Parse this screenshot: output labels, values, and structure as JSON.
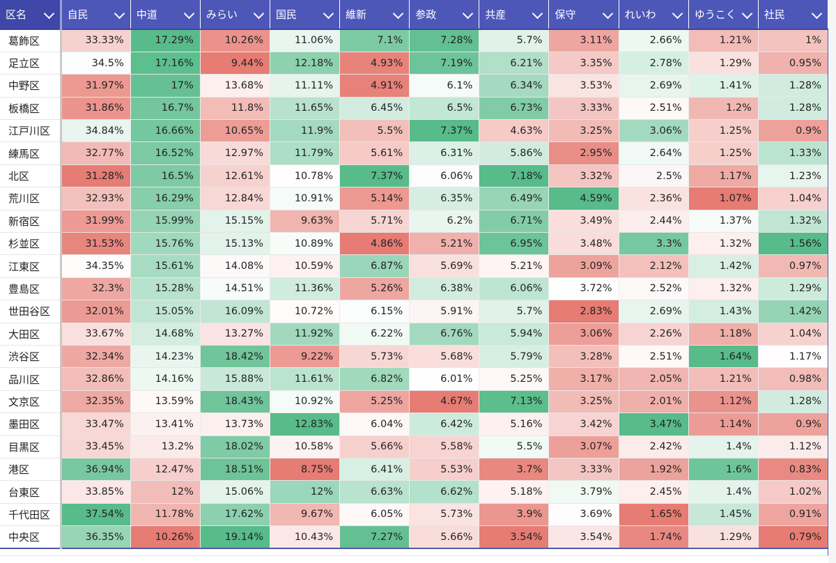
{
  "header": {
    "name_label": "区名",
    "columns": [
      "自民",
      "中道",
      "みらい",
      "国民",
      "維新",
      "参政",
      "共産",
      "保守",
      "れいわ",
      "ゆうこく",
      "社民"
    ]
  },
  "rows": [
    {
      "name": "葛飾区",
      "values": [
        "33.33%",
        "17.29%",
        "10.26%",
        "11.06%",
        "7.1%",
        "7.28%",
        "5.7%",
        "3.11%",
        "2.66%",
        "1.21%",
        "1%"
      ]
    },
    {
      "name": "足立区",
      "values": [
        "34.5%",
        "17.16%",
        "9.44%",
        "12.18%",
        "4.93%",
        "7.19%",
        "6.21%",
        "3.35%",
        "2.78%",
        "1.29%",
        "0.95%"
      ]
    },
    {
      "name": "中野区",
      "values": [
        "31.97%",
        "17%",
        "13.68%",
        "11.11%",
        "4.91%",
        "6.1%",
        "6.34%",
        "3.53%",
        "2.69%",
        "1.41%",
        "1.28%"
      ]
    },
    {
      "name": "板橋区",
      "values": [
        "31.86%",
        "16.7%",
        "11.8%",
        "11.65%",
        "6.45%",
        "6.5%",
        "6.73%",
        "3.33%",
        "2.51%",
        "1.2%",
        "1.28%"
      ]
    },
    {
      "name": "江戸川区",
      "values": [
        "34.84%",
        "16.66%",
        "10.65%",
        "11.9%",
        "5.5%",
        "7.37%",
        "4.63%",
        "3.25%",
        "3.06%",
        "1.25%",
        "0.9%"
      ]
    },
    {
      "name": "練馬区",
      "values": [
        "32.77%",
        "16.52%",
        "12.97%",
        "11.79%",
        "5.61%",
        "6.31%",
        "5.86%",
        "2.95%",
        "2.64%",
        "1.25%",
        "1.33%"
      ]
    },
    {
      "name": "北区",
      "values": [
        "31.28%",
        "16.5%",
        "12.61%",
        "10.78%",
        "7.37%",
        "6.06%",
        "7.18%",
        "3.32%",
        "2.5%",
        "1.17%",
        "1.23%"
      ]
    },
    {
      "name": "荒川区",
      "values": [
        "32.93%",
        "16.29%",
        "12.84%",
        "10.91%",
        "5.14%",
        "6.35%",
        "6.49%",
        "4.59%",
        "2.36%",
        "1.07%",
        "1.04%"
      ]
    },
    {
      "name": "新宿区",
      "values": [
        "31.99%",
        "15.99%",
        "15.15%",
        "9.63%",
        "5.71%",
        "6.2%",
        "6.71%",
        "3.49%",
        "2.44%",
        "1.37%",
        "1.32%"
      ]
    },
    {
      "name": "杉並区",
      "values": [
        "31.53%",
        "15.76%",
        "15.13%",
        "10.89%",
        "4.86%",
        "5.21%",
        "6.95%",
        "3.48%",
        "3.3%",
        "1.32%",
        "1.56%"
      ]
    },
    {
      "name": "江東区",
      "values": [
        "34.35%",
        "15.61%",
        "14.08%",
        "10.59%",
        "6.87%",
        "5.69%",
        "5.21%",
        "3.09%",
        "2.12%",
        "1.42%",
        "0.97%"
      ]
    },
    {
      "name": "豊島区",
      "values": [
        "32.3%",
        "15.28%",
        "14.51%",
        "11.36%",
        "5.26%",
        "6.38%",
        "6.06%",
        "3.72%",
        "2.52%",
        "1.32%",
        "1.29%"
      ]
    },
    {
      "name": "世田谷区",
      "values": [
        "32.01%",
        "15.05%",
        "16.09%",
        "10.72%",
        "6.15%",
        "5.91%",
        "5.7%",
        "2.83%",
        "2.69%",
        "1.43%",
        "1.42%"
      ]
    },
    {
      "name": "大田区",
      "values": [
        "33.67%",
        "14.68%",
        "13.27%",
        "11.92%",
        "6.22%",
        "6.76%",
        "5.94%",
        "3.06%",
        "2.26%",
        "1.18%",
        "1.04%"
      ]
    },
    {
      "name": "渋谷区",
      "values": [
        "32.34%",
        "14.23%",
        "18.42%",
        "9.22%",
        "5.73%",
        "5.68%",
        "5.79%",
        "3.28%",
        "2.51%",
        "1.64%",
        "1.17%"
      ]
    },
    {
      "name": "品川区",
      "values": [
        "32.86%",
        "14.16%",
        "15.88%",
        "11.61%",
        "6.82%",
        "6.01%",
        "5.25%",
        "3.17%",
        "2.05%",
        "1.21%",
        "0.98%"
      ]
    },
    {
      "name": "文京区",
      "values": [
        "32.35%",
        "13.59%",
        "18.43%",
        "10.92%",
        "5.25%",
        "4.67%",
        "7.13%",
        "3.25%",
        "2.01%",
        "1.12%",
        "1.28%"
      ]
    },
    {
      "name": "墨田区",
      "values": [
        "33.47%",
        "13.41%",
        "13.73%",
        "12.83%",
        "6.04%",
        "6.42%",
        "5.16%",
        "3.42%",
        "3.47%",
        "1.14%",
        "0.9%"
      ]
    },
    {
      "name": "目黒区",
      "values": [
        "33.45%",
        "13.2%",
        "18.02%",
        "10.58%",
        "5.66%",
        "5.58%",
        "5.5%",
        "3.07%",
        "2.42%",
        "1.4%",
        "1.12%"
      ]
    },
    {
      "name": "港区",
      "values": [
        "36.94%",
        "12.47%",
        "18.51%",
        "8.75%",
        "6.41%",
        "5.53%",
        "3.7%",
        "3.33%",
        "1.92%",
        "1.6%",
        "0.83%"
      ]
    },
    {
      "name": "台東区",
      "values": [
        "33.85%",
        "12%",
        "15.06%",
        "12%",
        "6.63%",
        "6.62%",
        "5.18%",
        "3.79%",
        "2.45%",
        "1.4%",
        "1.02%"
      ]
    },
    {
      "name": "千代田区",
      "values": [
        "37.54%",
        "11.78%",
        "17.62%",
        "9.67%",
        "6.05%",
        "5.73%",
        "3.9%",
        "3.69%",
        "1.65%",
        "1.45%",
        "0.91%"
      ]
    },
    {
      "name": "中央区",
      "values": [
        "36.35%",
        "10.26%",
        "19.14%",
        "10.43%",
        "7.27%",
        "5.66%",
        "3.54%",
        "3.54%",
        "1.74%",
        "1.29%",
        "0.79%"
      ]
    }
  ],
  "colors": {
    "header_bg": "#4d57b8",
    "header_text": "#ffffff",
    "scale_low": "#e67c73",
    "scale_mid": "#ffffff",
    "scale_high": "#57bb8a"
  }
}
